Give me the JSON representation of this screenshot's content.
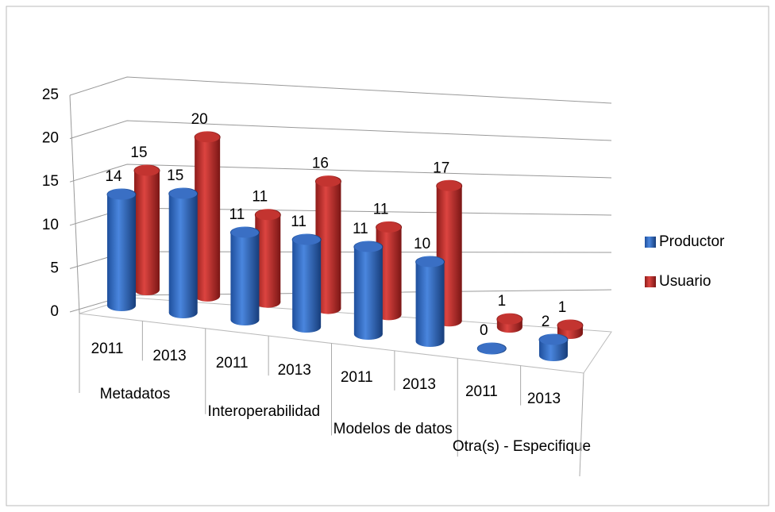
{
  "chart_data": {
    "type": "bar3d",
    "categories": [
      "2011",
      "2013",
      "2011",
      "2013",
      "2011",
      "2013",
      "2011",
      "2013"
    ],
    "groups": [
      "Metadatos",
      "Interoperabilidad",
      "Modelos de datos",
      "Otra(s) - Especifique"
    ],
    "series": [
      {
        "name": "Productor",
        "color": "#3a6fc4",
        "values": [
          14,
          15,
          11,
          11,
          11,
          10,
          0,
          2
        ]
      },
      {
        "name": "Usuario",
        "color": "#c33430",
        "values": [
          15,
          20,
          11,
          16,
          11,
          17,
          1,
          1
        ]
      }
    ],
    "ylim": [
      0,
      25
    ],
    "yticks": [
      0,
      5,
      10,
      15,
      20,
      25
    ],
    "grid": true,
    "legend": "right"
  }
}
